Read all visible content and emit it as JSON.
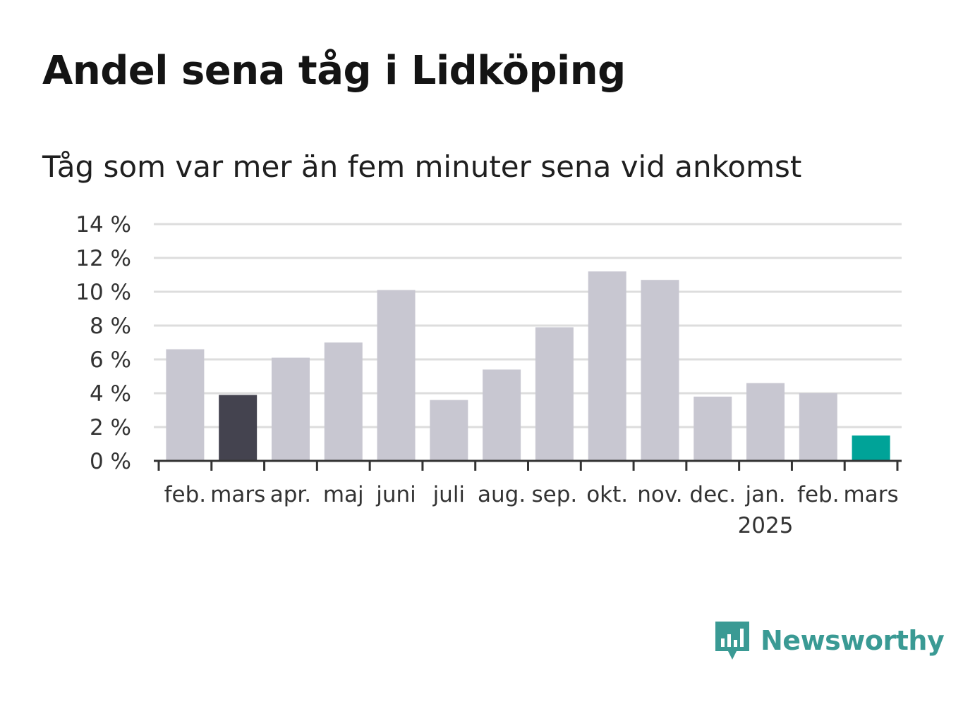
{
  "title": "Andel sena tåg i Lidköping",
  "subtitle": "Tåg som var mer än fem minuter sena vid ankomst",
  "brand": {
    "name": "Newsworthy",
    "icon": "newsworthy-logo-icon"
  },
  "colors": {
    "default_bar": "#c8c7d1",
    "previous_year_bar": "#44434f",
    "current_bar": "#00a398",
    "gridline": "#dddddd",
    "axis": "#333333",
    "brand": "#3a9a94"
  },
  "chart_data": {
    "type": "bar",
    "categories": [
      "feb.",
      "mars",
      "apr.",
      "maj",
      "juni",
      "juli",
      "aug.",
      "sep.",
      "okt.",
      "nov.",
      "dec.",
      "jan.",
      "feb.",
      "mars"
    ],
    "category_sublabels": [
      "",
      "",
      "",
      "",
      "",
      "",
      "",
      "",
      "",
      "",
      "",
      "2025",
      "",
      ""
    ],
    "values": [
      6.6,
      3.9,
      6.1,
      7.0,
      10.1,
      3.6,
      5.4,
      7.9,
      11.2,
      10.7,
      3.8,
      4.6,
      4.0,
      1.5
    ],
    "highlight": [
      "default",
      "previous_year",
      "default",
      "default",
      "default",
      "default",
      "default",
      "default",
      "default",
      "default",
      "default",
      "default",
      "default",
      "current"
    ],
    "ylim": [
      0,
      14
    ],
    "yticks": [
      0,
      2,
      4,
      6,
      8,
      10,
      12,
      14
    ],
    "ytick_labels": [
      "0 %",
      "2 %",
      "4 %",
      "6 %",
      "8 %",
      "10 %",
      "12 %",
      "14 %"
    ],
    "grid": true,
    "xlabel": "",
    "ylabel": ""
  }
}
